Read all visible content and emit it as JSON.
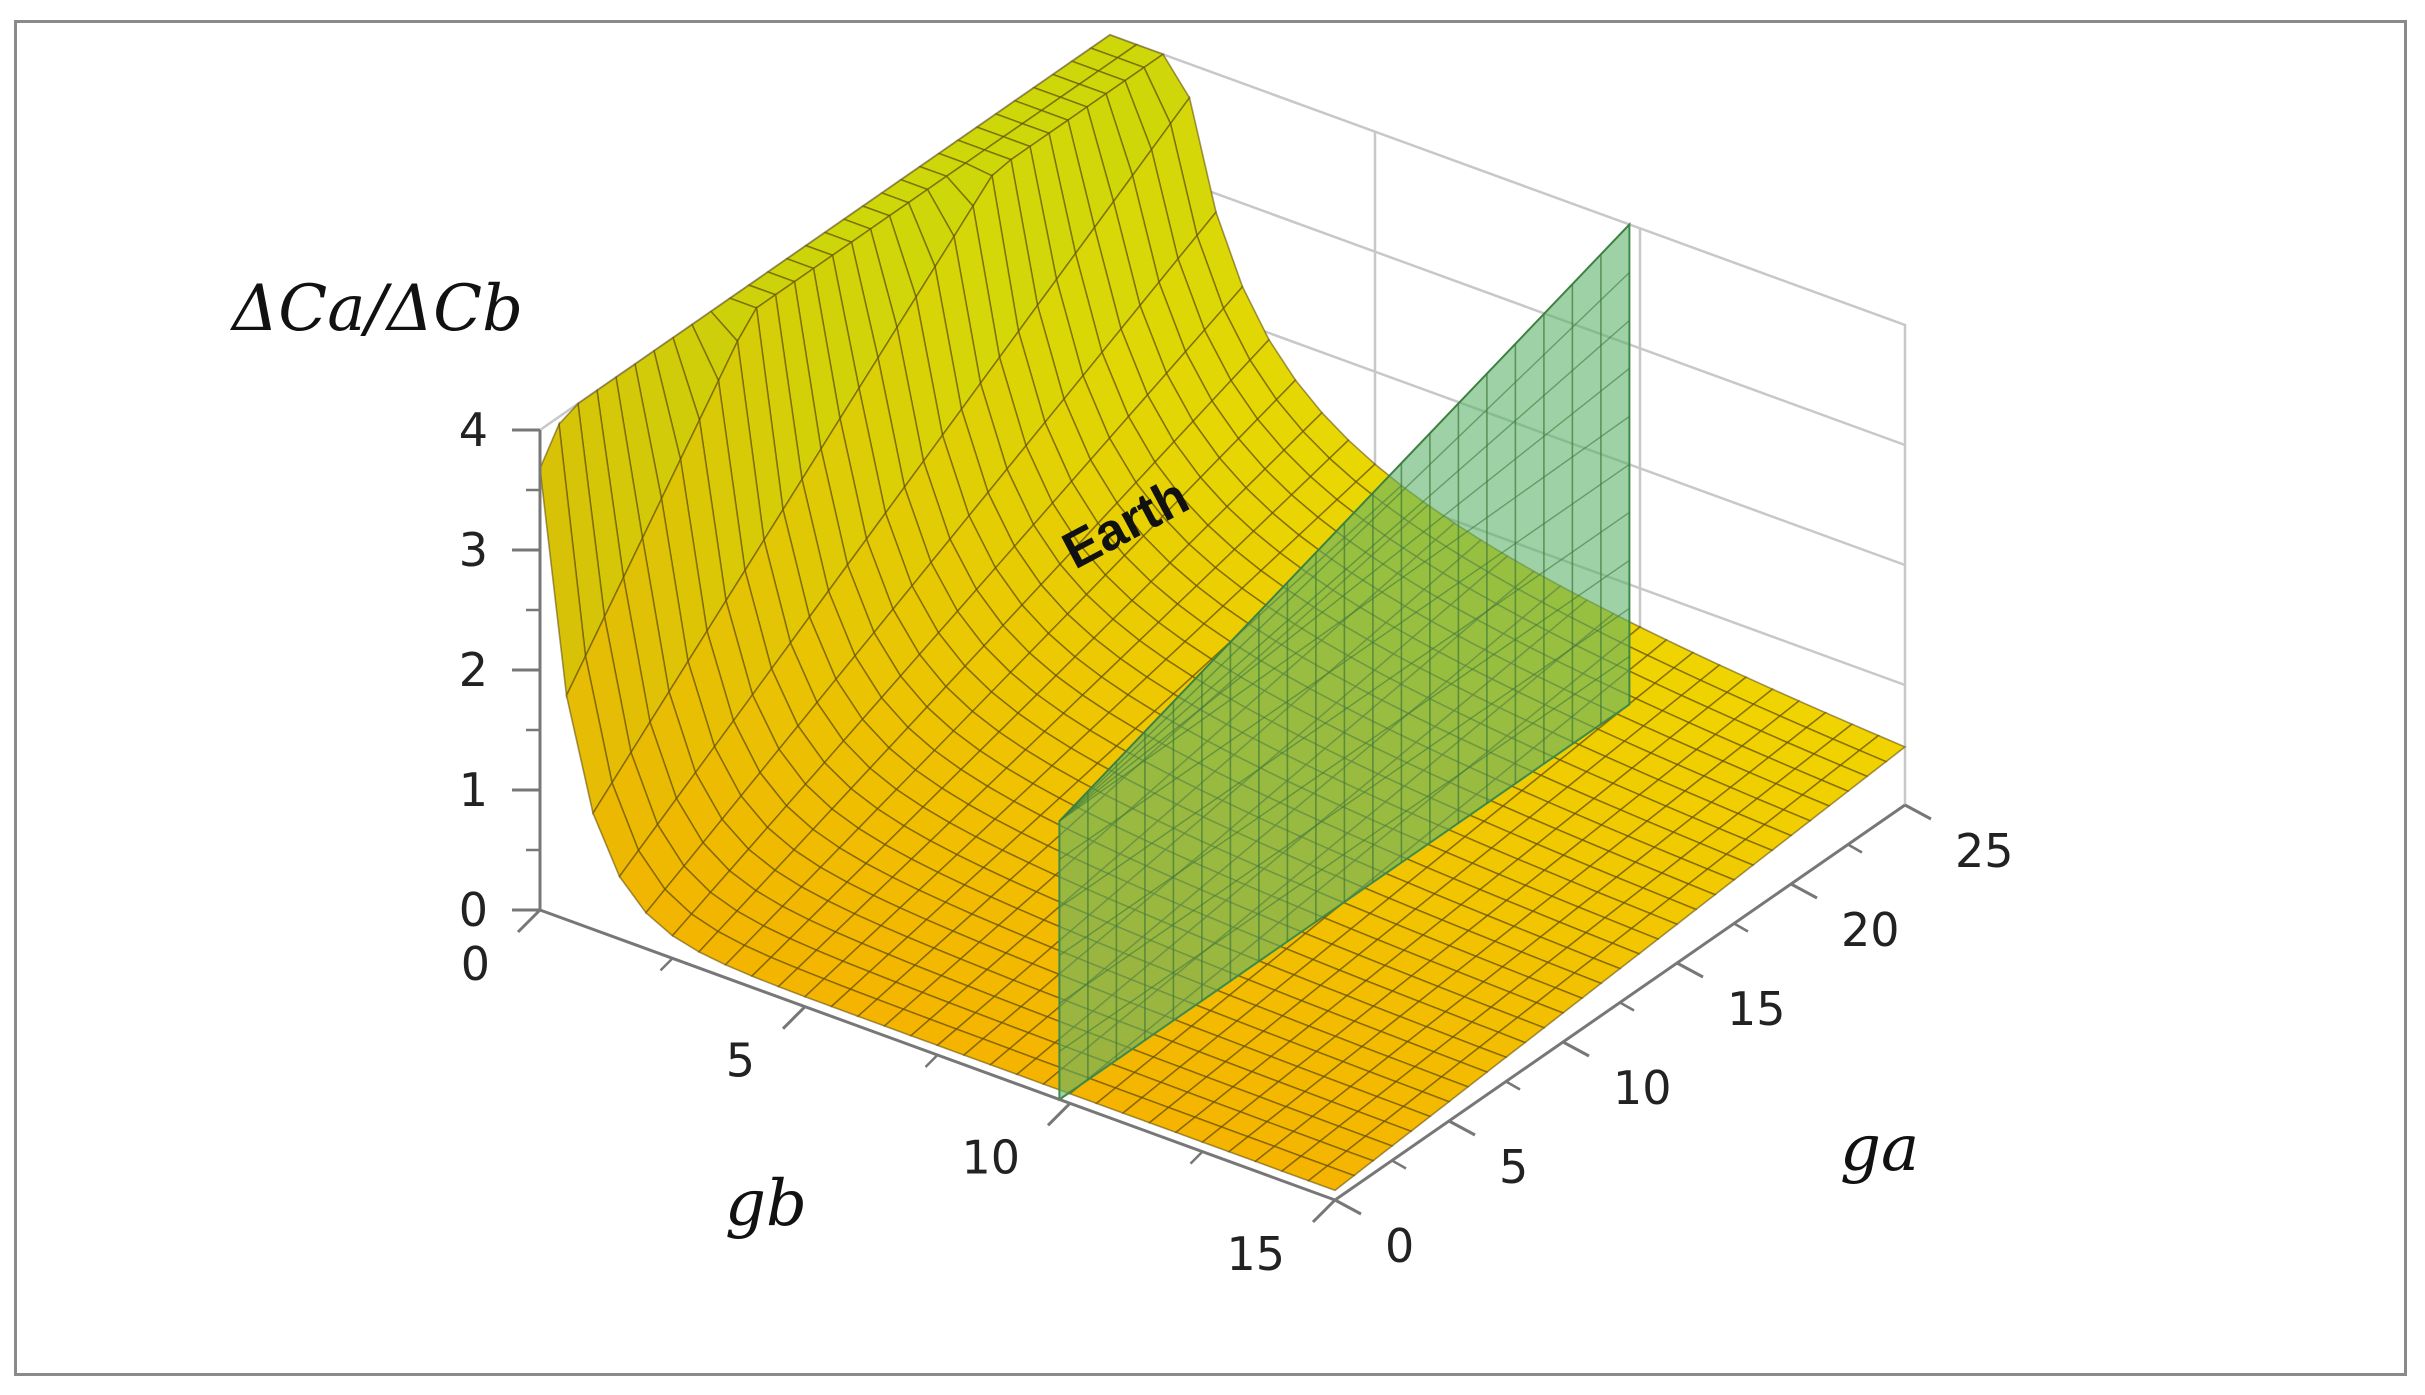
{
  "chart_data": {
    "type": "surface3d",
    "title": "",
    "zlabel": "ΔCa/ΔCb",
    "xlabel": "gb",
    "ylabel": "ga",
    "xlim": [
      0,
      15
    ],
    "ylim": [
      0,
      25
    ],
    "zlim": [
      0,
      4
    ],
    "x_ticks": [
      "0",
      "5",
      "10",
      "15"
    ],
    "y_ticks": [
      "0",
      "5",
      "10",
      "15",
      "20",
      "25"
    ],
    "z_ticks": [
      "0",
      "1",
      "2",
      "3",
      "4"
    ],
    "surface": "ΔCa/ΔCb as a function of gb and ga",
    "surface_color": "#f5c400",
    "plane": {
      "label": "Earth",
      "gb": 9.8,
      "color": "#5fb36a"
    },
    "grid": true
  }
}
